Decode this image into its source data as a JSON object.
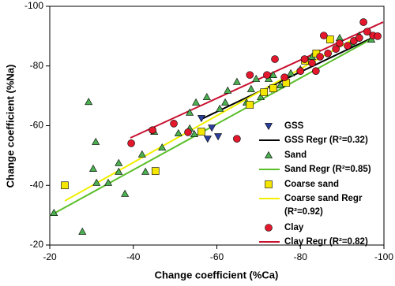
{
  "chart_data": {
    "type": "scatter",
    "xlabel": "Change coefficient (%Ca)",
    "ylabel": "Change coefficient (%Na)",
    "xlim": [
      -20,
      -100
    ],
    "xticks": [
      -20,
      -40,
      -60,
      -80,
      -100
    ],
    "ylim": [
      -20,
      -100
    ],
    "yticks": [
      -20,
      -40,
      -60,
      -80,
      -100
    ],
    "legend": "lower right",
    "series": [
      {
        "name": "GSS",
        "marker": "triangle-down",
        "color": "#2b3f9e",
        "x": [
          -56.3,
          -58.8,
          -60.3,
          -57.8,
          -73.1
        ],
        "values": [
          -62.5,
          -59.3,
          -56.4,
          -55.6,
          -72.3
        ]
      },
      {
        "name": "Sand",
        "marker": "triangle",
        "color": "#4caf50",
        "x": [
          -21,
          -27.8,
          -29.3,
          -31,
          -30.4,
          -31.2,
          -34,
          -36.5,
          -36.5,
          -38,
          -42.1,
          -42.9,
          -45,
          -46.9,
          -50.8,
          -53.5,
          -53.5,
          -54.6,
          -55,
          -57.6,
          -60.7,
          -62,
          -62.6,
          -64.8,
          -67.1,
          -68.2,
          -69.4,
          -70.5,
          -72.4,
          -73.5,
          -75.2,
          -77.7,
          -80,
          -82.8,
          -89.4,
          -92.2,
          -94.1,
          -97
        ],
        "values": [
          -30.8,
          -24.5,
          -68,
          -54.6,
          -45.6,
          -40.9,
          -40.9,
          -47.5,
          -44.6,
          -37.2,
          -50.4,
          -44.6,
          -58,
          -52.7,
          -57.5,
          -59.1,
          -64.4,
          -57.2,
          -67.8,
          -69.6,
          -65.7,
          -67.8,
          -71.8,
          -74.7,
          -67.8,
          -72.3,
          -75.7,
          -69.6,
          -75.7,
          -77,
          -73.6,
          -77.6,
          -78.9,
          -83.1,
          -89.4,
          -87.6,
          -90.2,
          -88.9
        ]
      },
      {
        "name": "Coarse sand",
        "marker": "square",
        "color": "#f5e600",
        "x": [
          -23.6,
          -45.3,
          -56.3,
          -67.9,
          -71.3,
          -73.5,
          -76.6,
          -81.1,
          -83.8,
          -87.1
        ],
        "values": [
          -40,
          -44.8,
          -58,
          -67,
          -71.2,
          -72.5,
          -74.4,
          -81.8,
          -84.2,
          -88.9
        ]
      },
      {
        "name": "Clay",
        "marker": "circle",
        "color": "#e3182d",
        "x": [
          -39.5,
          -44.6,
          -49.7,
          -53.1,
          -64.8,
          -67.9,
          -72,
          -73.9,
          -76.2,
          -80,
          -81,
          -82.8,
          -83.7,
          -84.7,
          -85.6,
          -86.6,
          -88.5,
          -89.4,
          -91.3,
          -92.8,
          -94.1,
          -95.1,
          -96,
          -97.4,
          -98.5
        ],
        "values": [
          -54.1,
          -58.5,
          -60.7,
          -57.8,
          -55.6,
          -77,
          -77,
          -82.3,
          -76.2,
          -78.3,
          -82.3,
          -81,
          -78.3,
          -83.1,
          -90.2,
          -84.2,
          -85.7,
          -87.6,
          -86.8,
          -88.4,
          -89.4,
          -94.7,
          -91.5,
          -90.2,
          -90
        ]
      }
    ],
    "regressions": [
      {
        "name": "GSS Regr (R²=0.32)",
        "color": "#000000",
        "x": [
          -56,
          -98
        ],
        "values": [
          -62,
          -90
        ]
      },
      {
        "name": "Sand Regr (R²=0.85)",
        "color": "#5bbf2a",
        "x": [
          -20,
          -98.5
        ],
        "values": [
          -29.8,
          -90.2
        ]
      },
      {
        "name": [
          "Coarse sand Regr",
          "(R²=0.92)"
        ],
        "color": "#f0f000",
        "x": [
          -23.6,
          -93.2
        ],
        "values": [
          -34.8,
          -89.4
        ]
      },
      {
        "name": "Clay Regr (R²=0.82)",
        "color": "#c8102e",
        "x": [
          -39.3,
          -99.8
        ],
        "values": [
          -55.9,
          -94.7
        ]
      }
    ]
  }
}
